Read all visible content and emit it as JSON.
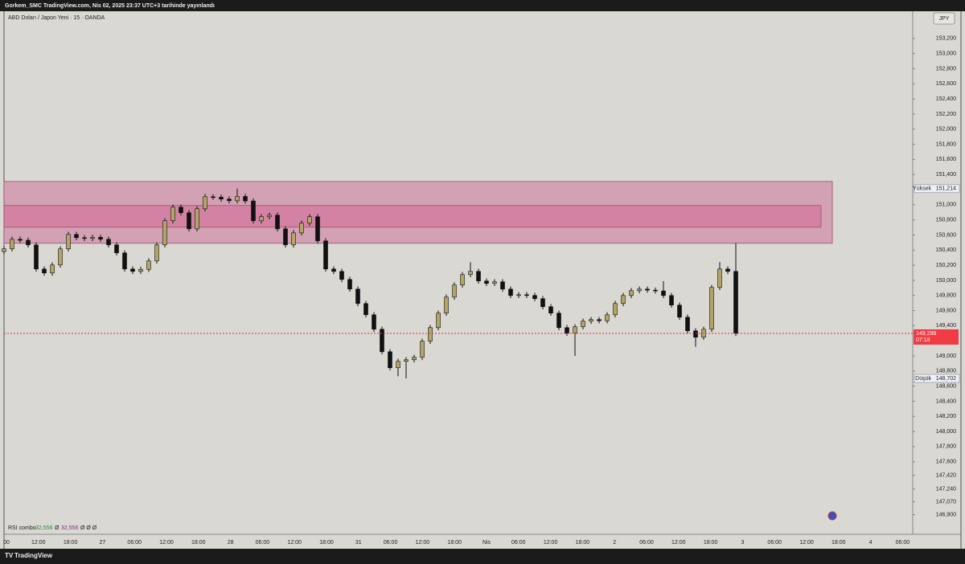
{
  "chart_data": {
    "type": "candlestick",
    "header": "Gorkem_SMC TradingView.com, Nis 02, 2025 23:37 UTC+3 tarihinde yayınlandı",
    "title": "ABD Doları / Japon Yeni · 15 · OANDA",
    "currency": "JPY",
    "brand": "TradingView",
    "indicator": {
      "name": "RSI combo",
      "value1": "32,556",
      "sep1": "Ø",
      "value2": "32,556",
      "rest": "Ø Ø Ø"
    },
    "up_color": "#b3a566",
    "down_color": "#111111",
    "open": [
      150380,
      150416,
      150543,
      150530,
      150469,
      150150,
      150097,
      150203,
      150416,
      150607,
      150564,
      150554,
      150570,
      150543,
      150469,
      150363,
      150150,
      150118,
      150145,
      150256,
      150469,
      150788,
      150968,
      150894,
      150681,
      150947,
      151106,
      151100,
      151075,
      151053,
      151110,
      151050,
      150788,
      150841,
      150862,
      150681,
      150469,
      150628,
      150756,
      150841,
      150522,
      150150,
      150118,
      150012,
      149884,
      149693,
      149544,
      149353,
      149055,
      148843,
      148928,
      148949,
      148981,
      149194,
      149374,
      149566,
      149778,
      149938,
      150076,
      150118,
      149991,
      149959,
      149980,
      149884,
      149799,
      149810,
      149800,
      149757,
      149651,
      149566,
      149374,
      149300,
      149385,
      149459,
      149481,
      149465,
      149544,
      149693,
      149799,
      149863,
      149884,
      149870,
      149860,
      149799,
      149672,
      149512,
      149332,
      149247,
      149353,
      149906,
      150150,
      150118
    ],
    "high": [
      150451,
      150578,
      150578,
      150565,
      150504,
      150185,
      150238,
      150451,
      150642,
      150642,
      150599,
      150605,
      150605,
      150578,
      150504,
      150398,
      150185,
      150180,
      150291,
      150504,
      150823,
      151003,
      151003,
      150929,
      150982,
      151141,
      151141,
      151135,
      151110,
      151214,
      151145,
      151085,
      150876,
      150897,
      150897,
      150716,
      150663,
      150791,
      150876,
      150876,
      150557,
      150185,
      150153,
      150047,
      149919,
      149728,
      149579,
      149388,
      149090,
      148963,
      148984,
      149016,
      149229,
      149409,
      149601,
      149813,
      149973,
      150111,
      150240,
      150153,
      150026,
      150015,
      150015,
      149919,
      149845,
      149845,
      149835,
      149792,
      149686,
      149601,
      149409,
      149420,
      149494,
      149516,
      149516,
      149579,
      149728,
      149834,
      149898,
      149919,
      149919,
      149905,
      149990,
      149834,
      149707,
      149547,
      149367,
      149388,
      149941,
      150240,
      150185,
      150490
    ],
    "low": [
      150345,
      150381,
      150495,
      150434,
      150115,
      150062,
      150062,
      150168,
      150381,
      150529,
      150519,
      150519,
      150508,
      150434,
      150328,
      150115,
      150083,
      150083,
      150110,
      150221,
      150434,
      150753,
      150859,
      150646,
      150646,
      150912,
      151065,
      151040,
      151018,
      151018,
      151015,
      150753,
      150753,
      150806,
      150646,
      150434,
      150434,
      150593,
      150721,
      150487,
      150115,
      150083,
      149977,
      149849,
      149658,
      149509,
      149318,
      149020,
      148808,
      148730,
      148702,
      148914,
      148946,
      149159,
      149339,
      149531,
      149743,
      149903,
      150041,
      149956,
      149924,
      149924,
      149849,
      149764,
      149764,
      149765,
      149722,
      149616,
      149531,
      149339,
      149265,
      149000,
      149350,
      149424,
      149430,
      149430,
      149509,
      149658,
      149764,
      149828,
      149835,
      149825,
      149764,
      149637,
      149477,
      149297,
      149120,
      149212,
      149318,
      149871,
      150083,
      149263
    ],
    "close": [
      150416,
      150543,
      150530,
      150469,
      150150,
      150097,
      150203,
      150416,
      150607,
      150564,
      150554,
      150570,
      150543,
      150469,
      150363,
      150150,
      150118,
      150145,
      150256,
      150469,
      150788,
      150968,
      150894,
      150681,
      150947,
      151106,
      151100,
      151075,
      151053,
      151110,
      151050,
      150788,
      150841,
      150862,
      150681,
      150469,
      150628,
      150756,
      150841,
      150522,
      150150,
      150118,
      150012,
      149884,
      149693,
      149544,
      149353,
      149055,
      148843,
      148928,
      148949,
      148981,
      149194,
      149374,
      149566,
      149778,
      149938,
      150076,
      150118,
      149991,
      149959,
      149980,
      149884,
      149799,
      149810,
      149800,
      149757,
      149651,
      149566,
      149374,
      149300,
      149385,
      149459,
      149481,
      149465,
      149544,
      149693,
      149799,
      149863,
      149884,
      149870,
      149860,
      149799,
      149672,
      149512,
      149332,
      149247,
      149353,
      149906,
      150150,
      150118,
      149298
    ],
    "zones": [
      {
        "top": 151308,
        "bottom": 150490,
        "color": "#cf8fa8"
      },
      {
        "top": 150990,
        "bottom": 150703,
        "color": "#d4789e"
      }
    ],
    "high_marker": {
      "name": "Yüksek",
      "value": 151214,
      "label": "151,214"
    },
    "low_marker": {
      "name": "Düşük",
      "value": 148702,
      "label": "148,702"
    },
    "last_price": {
      "value": 149298,
      "label": "149,298",
      "countdown": "07:18"
    },
    "ylim": [
      146640,
      153560
    ],
    "yticks": [
      {
        "value": 153200,
        "label": "153,200"
      },
      {
        "value": 153000,
        "label": "153,000"
      },
      {
        "value": 152800,
        "label": "152,800"
      },
      {
        "value": 152600,
        "label": "152,600"
      },
      {
        "value": 152400,
        "label": "152,400"
      },
      {
        "value": 152200,
        "label": "152,200"
      },
      {
        "value": 152000,
        "label": "152,000"
      },
      {
        "value": 151800,
        "label": "151,800"
      },
      {
        "value": 151600,
        "label": "151,600"
      },
      {
        "value": 151400,
        "label": "151,400"
      },
      {
        "value": 151000,
        "label": "151,000"
      },
      {
        "value": 150800,
        "label": "150,800"
      },
      {
        "value": 150600,
        "label": "150,600"
      },
      {
        "value": 150400,
        "label": "150,400"
      },
      {
        "value": 150200,
        "label": "150,200"
      },
      {
        "value": 150000,
        "label": "150,000"
      },
      {
        "value": 149800,
        "label": "149,800"
      },
      {
        "value": 149600,
        "label": "149,600"
      },
      {
        "value": 149400,
        "label": "149,400"
      },
      {
        "value": 149000,
        "label": "149,000"
      },
      {
        "value": 148800,
        "label": "148,800"
      },
      {
        "value": 148600,
        "label": "148,600"
      },
      {
        "value": 148400,
        "label": "148,400"
      },
      {
        "value": 148200,
        "label": "148,200"
      },
      {
        "value": 148000,
        "label": "148,000"
      },
      {
        "value": 147800,
        "label": "147,800"
      },
      {
        "value": 147600,
        "label": "147,600"
      },
      {
        "value": 147420,
        "label": "147,420"
      },
      {
        "value": 147240,
        "label": "147,240"
      },
      {
        "value": 147070,
        "label": "147,070"
      },
      {
        "value": 146900,
        "label": "146,900"
      }
    ],
    "xticks": [
      "00",
      "12:00",
      "18:00",
      "27",
      "06:00",
      "12:00",
      "18:00",
      "28",
      "06:00",
      "12:00",
      "18:00",
      "31",
      "06:00",
      "12:00",
      "18:00",
      "Nis",
      "06:00",
      "12:00",
      "18:00",
      "2",
      "06:00",
      "12:00",
      "18:00",
      "3",
      "06:00",
      "12:00",
      "18:00",
      "4",
      "06:00"
    ]
  }
}
